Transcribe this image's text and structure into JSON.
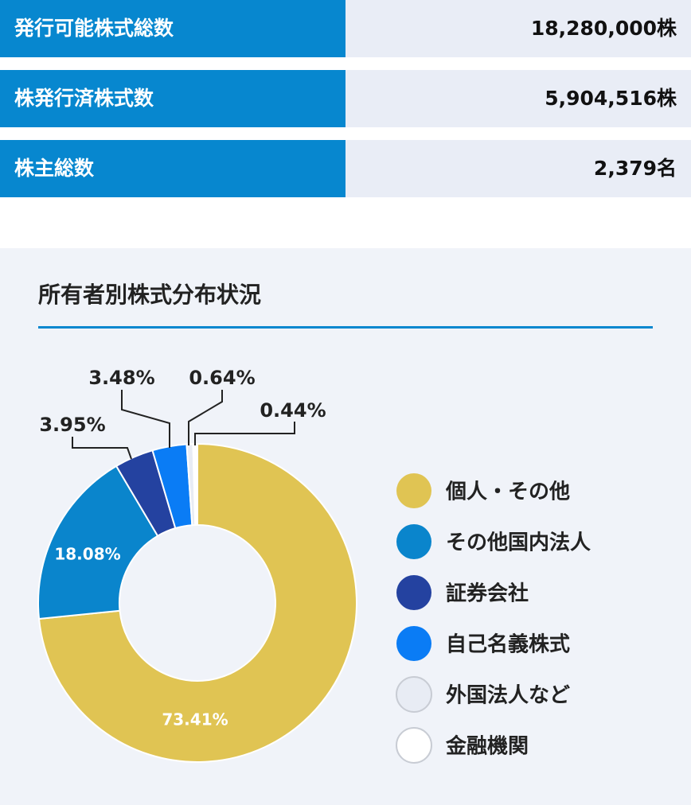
{
  "table": {
    "rows": [
      [
        "発行可能株式総数",
        "18,280,000株"
      ],
      [
        "株発行済株式数",
        "5,904,516株"
      ],
      [
        "株主総数",
        "2,379名"
      ]
    ]
  },
  "chart_data": {
    "type": "donut",
    "title": "所有者別株式分布状況",
    "categories": [
      "個人・その他",
      "その他国内法人",
      "証券会社",
      "自己名義株式",
      "外国法人など",
      "金融機関"
    ],
    "values": [
      73.41,
      18.08,
      3.95,
      3.48,
      0.64,
      0.44
    ],
    "value_labels": [
      "73.41%",
      "18.08%",
      "3.95%",
      "3.48%",
      "0.64%",
      "0.44%"
    ],
    "colors": [
      "#e0c453",
      "#0a85cc",
      "#2442a0",
      "#0a7cf5",
      "#e8ecf4",
      "#ffffff"
    ],
    "legend": "right"
  }
}
